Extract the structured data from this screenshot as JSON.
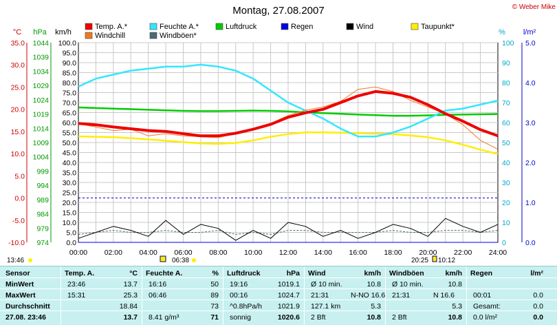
{
  "header": {
    "title": "Montag, 27.08.2007",
    "credit": "© Weber Mike"
  },
  "legend": [
    {
      "label": "Temp. A.*",
      "color": "#ee0000"
    },
    {
      "label": "Feuchte A.*",
      "color": "#33e6ff"
    },
    {
      "label": "Luftdruck",
      "color": "#00cc00"
    },
    {
      "label": "Regen",
      "color": "#0000dd"
    },
    {
      "label": "Wind",
      "color": "#000000"
    },
    {
      "label": "Taupunkt*",
      "color": "#ffee00"
    },
    {
      "label": "Windchill",
      "color": "#ee7a22"
    },
    {
      "label": "Windböen*",
      "color": "#4a6a78"
    }
  ],
  "axes": {
    "temp_unit": "°C",
    "pressure_unit": "hPa",
    "speed_unit": "km/h",
    "humidity_unit": "%",
    "rain_unit": "l/m²",
    "temp_ticks": [
      "35.0",
      "30.0",
      "25.0",
      "20.0",
      "15.0",
      "10.0",
      "5.0",
      "0.0",
      "-5.0",
      "-10.0"
    ],
    "pressure_ticks": [
      "1044",
      "1039",
      "1034",
      "1029",
      "1024",
      "1019",
      "1014",
      "1009",
      "1004",
      "999",
      "994",
      "989",
      "984",
      "979",
      "974"
    ],
    "speed_ticks": [
      "100.0",
      "95.0",
      "90.0",
      "85.0",
      "80.0",
      "75.0",
      "70.0",
      "65.0",
      "60.0",
      "55.0",
      "50.0",
      "45.0",
      "40.0",
      "35.0",
      "30.0",
      "25.0",
      "20.0",
      "15.0",
      "10.0",
      "5.0",
      "0.0"
    ],
    "humidity_ticks": [
      "100",
      "90",
      "80",
      "70",
      "60",
      "50",
      "40",
      "30",
      "20",
      "10",
      "0"
    ],
    "rain_ticks": [
      "5.0",
      "4.0",
      "3.0",
      "2.0",
      "1.0",
      "0.0"
    ],
    "time_ticks": [
      "00:00",
      "02:00",
      "04:00",
      "06:00",
      "08:00",
      "10:00",
      "12:00",
      "14:00",
      "16:00",
      "18:00",
      "20:00",
      "22:00",
      "24:00"
    ]
  },
  "sun": {
    "moon_rise": "13:46",
    "sunrise": "06:38",
    "sunset": "20:25",
    "moon_set": "10:12"
  },
  "chart_data": {
    "type": "line",
    "x": [
      "00:00",
      "01:00",
      "02:00",
      "03:00",
      "04:00",
      "05:00",
      "06:00",
      "07:00",
      "08:00",
      "09:00",
      "10:00",
      "11:00",
      "12:00",
      "13:00",
      "14:00",
      "15:00",
      "16:00",
      "17:00",
      "18:00",
      "19:00",
      "20:00",
      "21:00",
      "22:00",
      "23:00",
      "24:00"
    ],
    "xlabel": "",
    "series": [
      {
        "name": "Temp. A.*",
        "axis": "°C",
        "values": [
          16.8,
          16.5,
          16.0,
          15.6,
          15.2,
          15.0,
          14.5,
          14.0,
          14.0,
          14.6,
          15.5,
          16.6,
          18.2,
          19.2,
          20.0,
          21.5,
          23.0,
          24.0,
          23.6,
          22.7,
          21.0,
          19.0,
          17.3,
          15.4,
          14.0
        ]
      },
      {
        "name": "Windchill",
        "axis": "°C",
        "values": [
          16.7,
          16.0,
          15.2,
          15.5,
          14.0,
          14.5,
          14.0,
          13.8,
          13.6,
          14.5,
          15.4,
          16.8,
          18.6,
          19.8,
          20.5,
          21.8,
          24.5,
          25.0,
          24.0,
          22.0,
          20.5,
          19.0,
          16.5,
          13.0,
          11.0
        ]
      },
      {
        "name": "Taupunkt*",
        "axis": "°C",
        "values": [
          13.9,
          13.8,
          13.7,
          13.5,
          13.2,
          12.9,
          12.6,
          12.3,
          12.2,
          12.4,
          13.0,
          13.8,
          14.4,
          14.8,
          14.8,
          14.7,
          14.6,
          14.5,
          14.4,
          14.1,
          13.7,
          13.0,
          12.0,
          10.9,
          9.9
        ]
      },
      {
        "name": "Feuchte A.*",
        "axis": "%",
        "values": [
          78,
          82,
          84,
          86,
          87,
          88,
          88,
          89,
          88,
          86,
          82,
          76,
          70,
          66,
          62,
          57,
          53,
          53,
          55,
          58,
          62,
          66,
          67,
          69,
          71
        ]
      },
      {
        "name": "Luftdruck",
        "axis": "hPa",
        "values": [
          1021.3,
          1021.1,
          1020.9,
          1020.7,
          1020.5,
          1020.3,
          1020.1,
          1020.0,
          1020.0,
          1020.1,
          1020.2,
          1020.1,
          1019.9,
          1019.6,
          1019.3,
          1019.1,
          1018.8,
          1018.6,
          1018.4,
          1018.4,
          1018.5,
          1018.7,
          1018.8,
          1018.9,
          1019.0
        ]
      },
      {
        "name": "Wind",
        "axis": "km/h",
        "values": [
          2,
          5,
          8,
          6,
          3,
          11,
          4,
          9,
          7,
          1,
          6,
          2,
          10,
          8,
          3,
          6,
          2,
          5,
          9,
          7,
          3,
          12,
          8,
          5,
          9
        ]
      },
      {
        "name": "Windböen*",
        "axis": "km/h",
        "values": [
          4,
          5,
          6,
          5,
          5,
          6,
          5,
          5,
          6,
          4,
          5,
          4,
          6,
          6,
          5,
          5,
          5,
          5,
          6,
          5,
          5,
          6,
          6,
          5,
          6
        ]
      },
      {
        "name": "Regen",
        "axis": "l/m²",
        "values": [
          0,
          0,
          0,
          0,
          0,
          0,
          0,
          0,
          0,
          0,
          0,
          0,
          0,
          0,
          0,
          0,
          0,
          0,
          0,
          0,
          0,
          0,
          0,
          0,
          0
        ]
      }
    ],
    "ylim_temp": [
      -10,
      35
    ],
    "ylim_pressure": [
      974,
      1044
    ],
    "ylim_speed": [
      0,
      100
    ],
    "ylim_humidity": [
      0,
      100
    ],
    "ylim_rain": [
      0,
      5
    ],
    "grid": true,
    "legend_position": "top"
  },
  "table": {
    "headers": {
      "sensor": "Sensor",
      "temp": "Temp. A.",
      "temp_unit": "°C",
      "feuchte": "Feuchte A.",
      "feuchte_unit": "%",
      "luftdruck": "Luftdruck",
      "luftdruck_unit": "hPa",
      "wind": "Wind",
      "wind_unit": "km/h",
      "windboeen": "Windböen",
      "windboeen_unit": "km/h",
      "regen": "Regen",
      "regen_unit": "l/m²"
    },
    "rows": [
      {
        "label": "MinWert",
        "c1": "23:46",
        "c2": "13.7",
        "c3": "16:16",
        "c4": "50",
        "c5": "19:16",
        "c6": "1019.1",
        "c7": "Ø 10 min.",
        "c8": "10.8",
        "c9": "Ø 10 min.",
        "c10": "10.8",
        "c11": "",
        "c12": ""
      },
      {
        "label": "MaxWert",
        "c1": "15:31",
        "c2": "25.3",
        "c3": "06:46",
        "c4": "89",
        "c5": "00:16",
        "c6": "1024.7",
        "c7": "21:31",
        "c7b": "N-NO 16.6",
        "c8": "",
        "c9": "21:31",
        "c9b": "N 16.6",
        "c10": "",
        "c11": "00:01",
        "c12": "0.0"
      },
      {
        "label": "Durchschnitt",
        "c1": "",
        "c2": "18.84",
        "c3": "",
        "c4": "73",
        "c5": "^0.8hPa/h",
        "c6": "1021.9",
        "c7": "127.1 km",
        "c8": "5.3",
        "c9": "",
        "c10": "5.3",
        "c11": "Gesamt:",
        "c12": "0.0"
      },
      {
        "label": "27.08. 23:46",
        "c1": "",
        "c2": "13.7",
        "c3": "8.41 g/m³",
        "c4": "71",
        "c5": "sonnig",
        "c6": "1020.6",
        "c7": "2 Bft",
        "c8": "10.8",
        "c9": "2 Bft",
        "c10": "10.8",
        "c11": "0.0 l/m²",
        "c12": "0.0"
      }
    ]
  }
}
